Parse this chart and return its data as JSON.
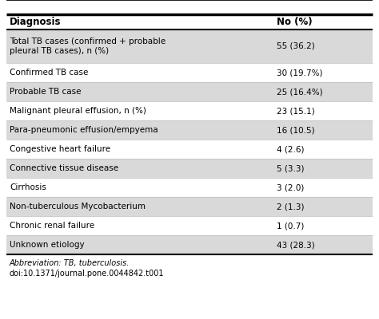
{
  "col1_header": "Diagnosis",
  "col2_header": "No (%)",
  "rows": [
    [
      "Total TB cases (confirmed + probable\npleural TB cases), n (%)",
      "55 (36.2)"
    ],
    [
      "Confirmed TB case",
      "30 (19.7%)"
    ],
    [
      "Probable TB case",
      "25 (16.4%)"
    ],
    [
      "Malignant pleural effusion, n (%)",
      "23 (15.1)"
    ],
    [
      "Para-pneumonic effusion/empyema",
      "16 (10.5)"
    ],
    [
      "Congestive heart failure",
      "4 (2.6)"
    ],
    [
      "Connective tissue disease",
      "5 (3.3)"
    ],
    [
      "Cirrhosis",
      "3 (2.0)"
    ],
    [
      "Non-tuberculous Mycobacterium",
      "2 (1.3)"
    ],
    [
      "Chronic renal failure",
      "1 (0.7)"
    ],
    [
      "Unknown etiology",
      "43 (28.3)"
    ]
  ],
  "footer_lines": [
    "Abbreviation: TB, tuberculosis.",
    "doi:10.1371/journal.pone.0044842.t001"
  ],
  "bg_color": "#ffffff",
  "row_alt_color": "#d9d9d9",
  "row_plain_color": "#ffffff",
  "border_color": "#000000",
  "light_border_color": "#bbbbbb",
  "text_color": "#000000",
  "font_size": 7.5,
  "header_font_size": 8.5,
  "footer_font_size": 7.0,
  "col_split": 0.73
}
